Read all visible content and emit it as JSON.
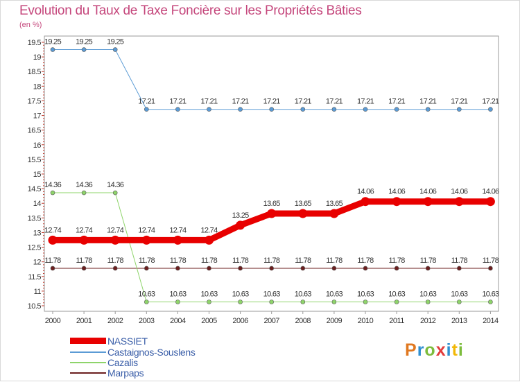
{
  "chart_data": {
    "type": "line",
    "title": "Evolution du Taux de Taxe Foncière sur les Propriétés Bâties",
    "ylabel": "(en %)",
    "xlabel": "",
    "x": [
      "2000",
      "2001",
      "2002",
      "2003",
      "2004",
      "2005",
      "2006",
      "2007",
      "2008",
      "2009",
      "2010",
      "2011",
      "2012",
      "2013",
      "2014"
    ],
    "ylim": [
      10.5,
      19.5
    ],
    "yticks": [
      "10.5",
      "11",
      "11.5",
      "12",
      "12.5",
      "13",
      "13.5",
      "14",
      "14.5",
      "15",
      "15.5",
      "16",
      "16.5",
      "17",
      "17.5",
      "18",
      "18.5",
      "19",
      "19.5"
    ],
    "grid": false,
    "legend_position": "bottom-left",
    "series": [
      {
        "name": "NASSIET",
        "color": "#e80000",
        "width": 9,
        "values": [
          12.74,
          12.74,
          12.74,
          12.74,
          12.74,
          12.74,
          13.25,
          13.65,
          13.65,
          13.65,
          14.06,
          14.06,
          14.06,
          14.06,
          14.06
        ],
        "labels": [
          "12.74",
          "12.74",
          "12.74",
          "12.74",
          "12.74",
          "12.74",
          "13.25",
          "13.65",
          "13.65",
          "13.65",
          "14.06",
          "14.06",
          "14.06",
          "14.06",
          "14.06"
        ]
      },
      {
        "name": "Castaignos-Souslens",
        "color": "#5b9bd5",
        "width": 1,
        "values": [
          19.25,
          19.25,
          19.25,
          17.21,
          17.21,
          17.21,
          17.21,
          17.21,
          17.21,
          17.21,
          17.21,
          17.21,
          17.21,
          17.21,
          17.21
        ],
        "labels": [
          "19.25",
          "19.25",
          "19.25",
          "17.21",
          "17.21",
          "17.21",
          "17.21",
          "17.21",
          "17.21",
          "17.21",
          "17.21",
          "17.21",
          "17.21",
          "17.21",
          "17.21"
        ]
      },
      {
        "name": "Cazalis",
        "color": "#8ed46a",
        "width": 1,
        "values": [
          14.36,
          14.36,
          14.36,
          10.63,
          10.63,
          10.63,
          10.63,
          10.63,
          10.63,
          10.63,
          10.63,
          10.63,
          10.63,
          10.63,
          10.63
        ],
        "labels": [
          "14.36",
          "14.36",
          "14.36",
          "10.63",
          "10.63",
          "10.63",
          "10.63",
          "10.63",
          "10.63",
          "10.63",
          "10.63",
          "10.63",
          "10.63",
          "10.63",
          "10.63"
        ]
      },
      {
        "name": "Marpaps",
        "color": "#6b1e1e",
        "width": 1,
        "values": [
          11.78,
          11.78,
          11.78,
          11.78,
          11.78,
          11.78,
          11.78,
          11.78,
          11.78,
          11.78,
          11.78,
          11.78,
          11.78,
          11.78,
          11.78
        ],
        "labels": [
          "11.78",
          "11.78",
          "11.78",
          "11.78",
          "11.78",
          "11.78",
          "11.78",
          "11.78",
          "11.78",
          "11.78",
          "11.78",
          "11.78",
          "11.78",
          "11.78",
          "11.78"
        ]
      }
    ]
  },
  "logo": {
    "text": "Proxiti",
    "letter_colors": [
      "#e07820",
      "#2e8fd0",
      "#7cbc3c",
      "#e23b3b",
      "#2e8fd0",
      "#f2b705",
      "#7cbc3c"
    ]
  }
}
